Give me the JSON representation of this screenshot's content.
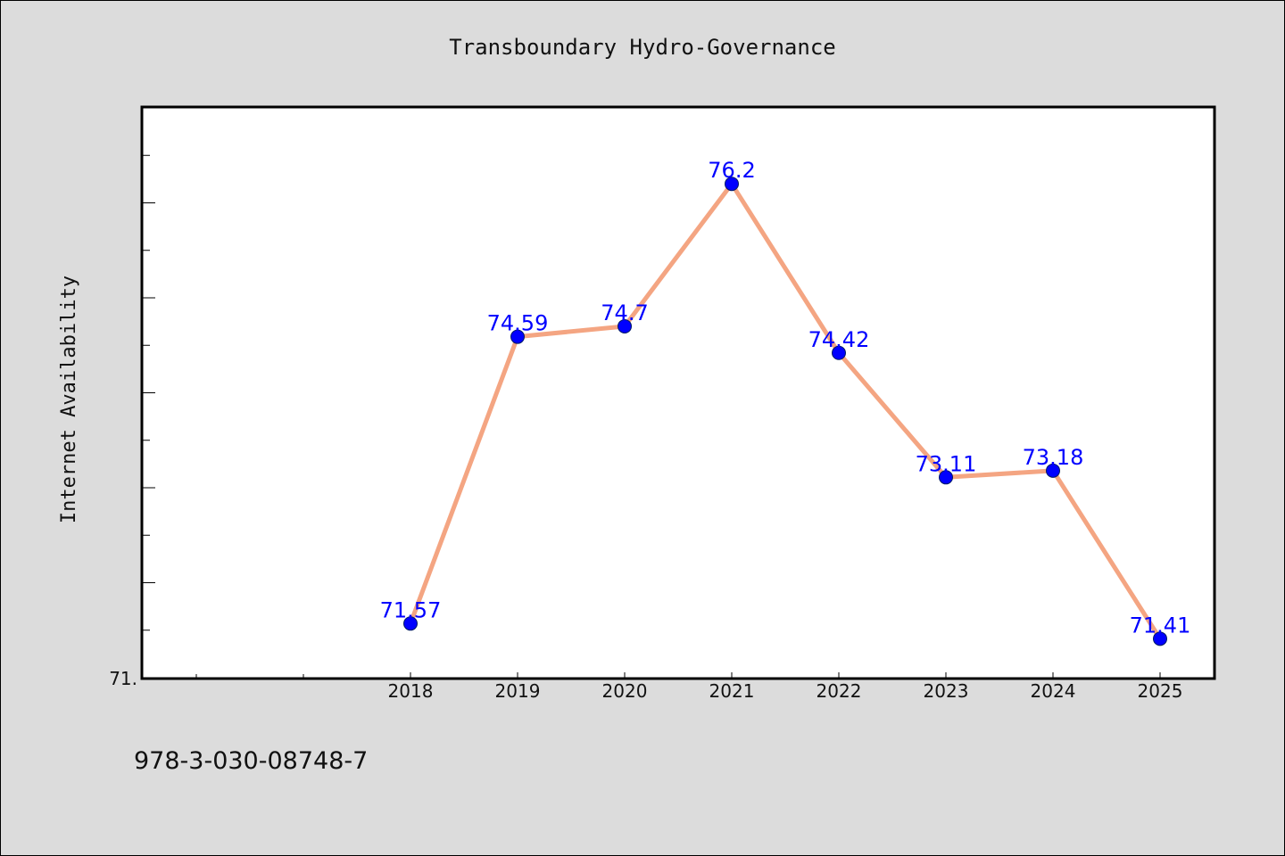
{
  "chart_data": {
    "type": "line",
    "title": "Transboundary Hydro-Governance",
    "xlabel": "",
    "ylabel": "Internet Availability",
    "categories": [
      "2018",
      "2019",
      "2020",
      "2021",
      "2022",
      "2023",
      "2024",
      "2025"
    ],
    "series": [
      {
        "values": [
          71.57,
          74.59,
          74.7,
          76.2,
          74.42,
          73.11,
          73.18,
          71.41
        ],
        "data_labels": [
          "71.57",
          "74.59",
          "74.7",
          "76.2",
          "74.42",
          "73.11",
          "73.18",
          "71.41"
        ]
      }
    ],
    "ylim": [
      71.0,
      77.0
    ],
    "y_tick_label": "71.",
    "grid": false,
    "legend": "none",
    "colors": {
      "line": "#f4a582",
      "marker": "#0000ff",
      "data_label": "#0000ff",
      "plot_background": "#ffffff",
      "figure_background": "#dcdcdc"
    }
  },
  "footer": {
    "isbn": "978-3-030-08748-7"
  }
}
